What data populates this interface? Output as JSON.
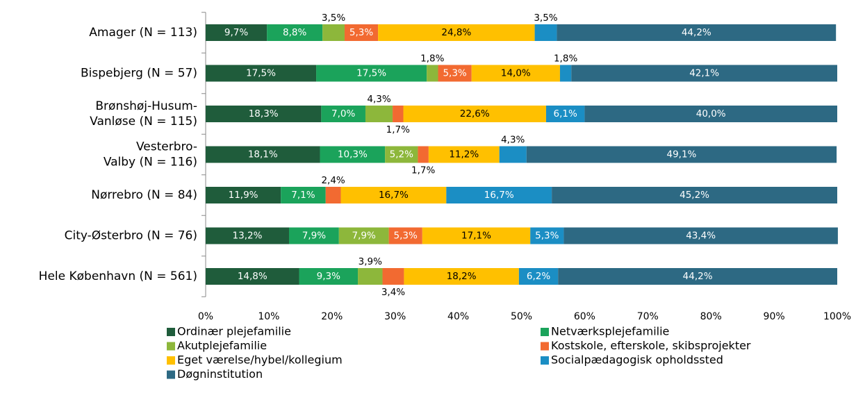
{
  "chart_data": {
    "type": "stacked_barh",
    "categories": [
      "Amager (N = 113)",
      "Bispebjerg (N = 57)",
      "Brønshøj-Husum-Vanløse (N = 115)",
      "Vesterbro-Valby (N = 116)",
      "Nørrebro (N = 84)",
      "City-Østerbro (N = 76)",
      "Hele København (N = 561)"
    ],
    "series": [
      {
        "name": "Ordinær plejefamilie",
        "color": "#1f5c3b",
        "values": [
          9.7,
          17.5,
          18.3,
          18.1,
          11.9,
          13.2,
          14.8
        ],
        "value_labels": [
          "9,7%",
          "17,5%",
          "18,3%",
          "18,1%",
          "11,9%",
          "13,2%",
          "14,8%"
        ]
      },
      {
        "name": "Netværksplejefamilie",
        "color": "#1ba35b",
        "values": [
          8.8,
          17.5,
          7.0,
          10.3,
          7.1,
          7.9,
          9.3
        ],
        "value_labels": [
          "8,8%",
          "17,5%",
          "7,0%",
          "10,3%",
          "7,1%",
          "7,9%",
          "9,3%"
        ]
      },
      {
        "name": "Akutplejefamilie",
        "color": "#8db73b",
        "values": [
          3.5,
          1.8,
          4.3,
          5.2,
          null,
          7.9,
          3.9
        ],
        "value_labels": [
          "3,5%",
          "1,8%",
          "4,3%",
          "5,2%",
          null,
          "7,9%",
          "3,9%"
        ]
      },
      {
        "name": "Kostskole, efterskole, skibsprojekter",
        "color": "#f26a31",
        "values": [
          5.3,
          5.3,
          1.7,
          1.7,
          2.4,
          5.3,
          3.4
        ],
        "value_labels": [
          "5,3%",
          "5,3%",
          "1,7%",
          "1,7%",
          "2,4%",
          "5,3%",
          "3,4%"
        ]
      },
      {
        "name": "Eget værelse/hybel/kollegium",
        "color": "#ffc000",
        "values": [
          24.8,
          14.0,
          22.6,
          11.2,
          16.7,
          17.1,
          18.2
        ],
        "value_labels": [
          "24,8%",
          "14,0%",
          "22,6%",
          "11,2%",
          "16,7%",
          "17,1%",
          "18,2%"
        ]
      },
      {
        "name": "Socialpædagogisk opholdssted",
        "color": "#1b8ec4",
        "values": [
          3.5,
          1.8,
          6.1,
          4.3,
          16.7,
          5.3,
          6.2
        ],
        "value_labels": [
          "3,5%",
          "1,8%",
          "6,1%",
          "4,3%",
          "16,7%",
          "5,3%",
          "6,2%"
        ]
      },
      {
        "name": "Døgninstitution",
        "color": "#2d6983",
        "values": [
          44.2,
          42.1,
          40.0,
          49.1,
          45.2,
          43.4,
          44.2
        ],
        "value_labels": [
          "44,2%",
          "42,1%",
          "40,0%",
          "49,1%",
          "45,2%",
          "43,4%",
          "44,2%"
        ]
      }
    ],
    "xlim": [
      0,
      100
    ],
    "xticks": [
      {
        "value": 0,
        "label": "0%"
      },
      {
        "value": 10,
        "label": "10%"
      },
      {
        "value": 20,
        "label": "20%"
      },
      {
        "value": 30,
        "label": "30%"
      },
      {
        "value": 40,
        "label": "40%"
      },
      {
        "value": 50,
        "label": "50%"
      },
      {
        "value": 60,
        "label": "60%"
      },
      {
        "value": 70,
        "label": "70%"
      },
      {
        "value": 80,
        "label": "80%"
      },
      {
        "value": 90,
        "label": "90%"
      },
      {
        "value": 100,
        "label": "100%"
      }
    ],
    "legend": "bottom"
  }
}
